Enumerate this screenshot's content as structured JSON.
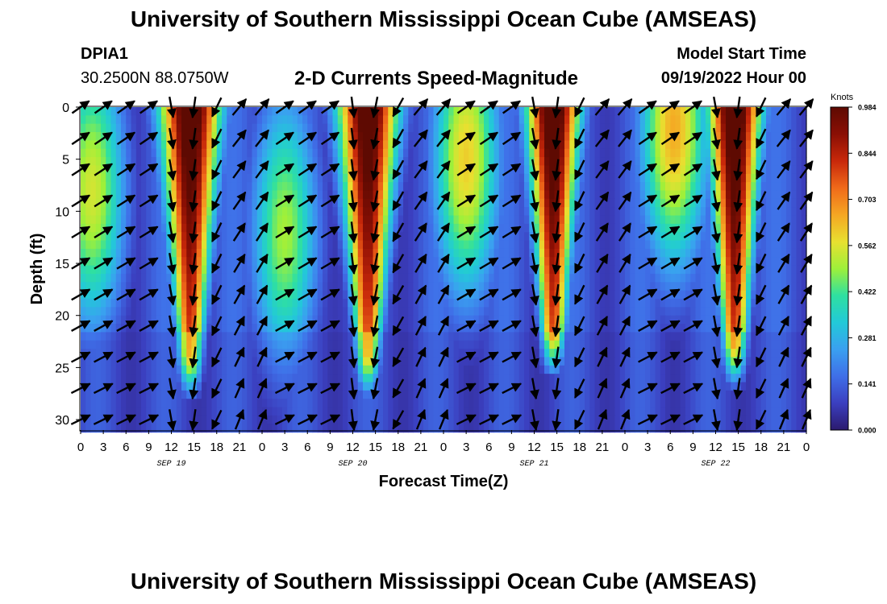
{
  "header": {
    "title": "University of Southern Mississippi Ocean Cube (AMSEAS)",
    "station": "DPIA1",
    "coords": "30.2500N  88.0750W",
    "subtitle": "2-D Currents Speed-Magnitude",
    "model_start_label": "Model Start Time",
    "model_start_value": "09/19/2022 Hour 00"
  },
  "footer": {
    "title": "University of Southern Mississippi Ocean Cube (AMSEAS)"
  },
  "colors": {
    "scale": [
      "#2b1a6e",
      "#3b3fbf",
      "#3f6fe8",
      "#3aa0f0",
      "#22c9d8",
      "#2fe0a0",
      "#9ef03a",
      "#e8e030",
      "#f5a623",
      "#f06a1a",
      "#c8280a",
      "#8a0f04",
      "#5e0a02"
    ]
  },
  "chart_data": {
    "type": "heatmap",
    "title": "2-D Currents Speed-Magnitude",
    "xlabel": "Forecast Time(Z)",
    "ylabel": "Depth (ft)",
    "x_ticks": [
      "0",
      "3",
      "6",
      "9",
      "12",
      "15",
      "18",
      "21",
      "0",
      "3",
      "6",
      "9",
      "12",
      "15",
      "18",
      "21",
      "0",
      "3",
      "6",
      "9",
      "12",
      "15",
      "18",
      "21",
      "0",
      "3",
      "6",
      "9",
      "12",
      "15",
      "18",
      "21",
      "0"
    ],
    "x_range_hours": [
      0,
      96
    ],
    "date_labels": [
      {
        "label": "SEP 19",
        "hour": 12
      },
      {
        "label": "SEP 20",
        "hour": 36
      },
      {
        "label": "SEP 21",
        "hour": 60
      },
      {
        "label": "SEP 22",
        "hour": 84
      }
    ],
    "y_ticks": [
      0,
      5,
      10,
      15,
      20,
      25,
      30
    ],
    "ylim": [
      0,
      31
    ],
    "y_inverted": true,
    "colorbar": {
      "label": "Knots",
      "ticks": [
        "0.984",
        "0.844",
        "0.703",
        "0.562",
        "0.422",
        "0.281",
        "0.141",
        "0.000"
      ],
      "range": [
        0,
        0.984
      ]
    },
    "speed_peaks": [
      {
        "hour": 14.5,
        "amp": 0.95,
        "surface_width": 4.0,
        "bottom_width": 1.5,
        "bottom_depth": 24
      },
      {
        "hour": 38.0,
        "amp": 0.93,
        "surface_width": 4.0,
        "bottom_width": 1.5,
        "bottom_depth": 24
      },
      {
        "hour": 62.5,
        "amp": 0.96,
        "surface_width": 3.5,
        "bottom_width": 1.5,
        "bottom_depth": 22
      },
      {
        "hour": 86.5,
        "amp": 0.97,
        "surface_width": 3.5,
        "bottom_width": 1.5,
        "bottom_depth": 23
      }
    ],
    "secondary_peaks": [
      {
        "hour": 1.5,
        "depth": 8,
        "amp": 0.55
      },
      {
        "hour": 27.0,
        "depth": 12,
        "amp": 0.5
      },
      {
        "hour": 51.0,
        "depth": 5,
        "amp": 0.6
      },
      {
        "hour": 78.5,
        "depth": 2,
        "amp": 0.65
      }
    ],
    "arrow_depths": [
      0,
      3,
      6,
      9,
      12,
      15,
      18,
      21,
      24,
      27,
      30
    ],
    "arrow_hour_step": 3,
    "current_direction_note": "arrows show current direction; flood toward NE, ebb toward S"
  }
}
